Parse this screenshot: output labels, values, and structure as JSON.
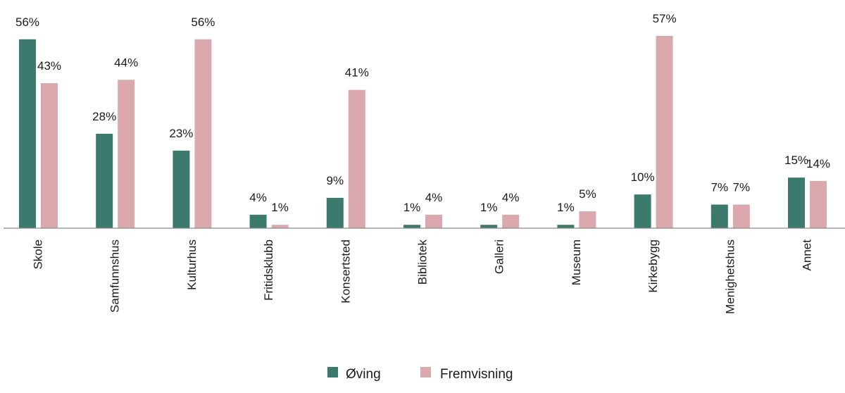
{
  "chart_data": {
    "type": "bar",
    "categories": [
      "Skole",
      "Samfunnshus",
      "Kulturhus",
      "Fritidsklubb",
      "Konsertsted",
      "Bibliotek",
      "Galleri",
      "Museum",
      "Kirkebygg",
      "Menighetshus",
      "Annet"
    ],
    "series": [
      {
        "name": "Øving",
        "color": "#3c7a6d",
        "values": [
          56,
          28,
          23,
          4,
          9,
          1,
          1,
          1,
          10,
          7,
          15
        ],
        "labels": [
          "56%",
          "28%",
          "23%",
          "4%",
          "9%",
          "1%",
          "1%",
          "1%",
          "10%",
          "7%",
          "15%"
        ]
      },
      {
        "name": "Fremvisning",
        "color": "#dba9ad",
        "values": [
          43,
          44,
          56,
          1,
          41,
          4,
          4,
          5,
          57,
          7,
          14
        ],
        "labels": [
          "43%",
          "44%",
          "56%",
          "1%",
          "41%",
          "4%",
          "4%",
          "5%",
          "57%",
          "7%",
          "14%"
        ]
      }
    ],
    "ylim": [
      0,
      57
    ],
    "grid": false,
    "legend_position": "bottom-center",
    "title": "",
    "xlabel": "",
    "ylabel": ""
  }
}
